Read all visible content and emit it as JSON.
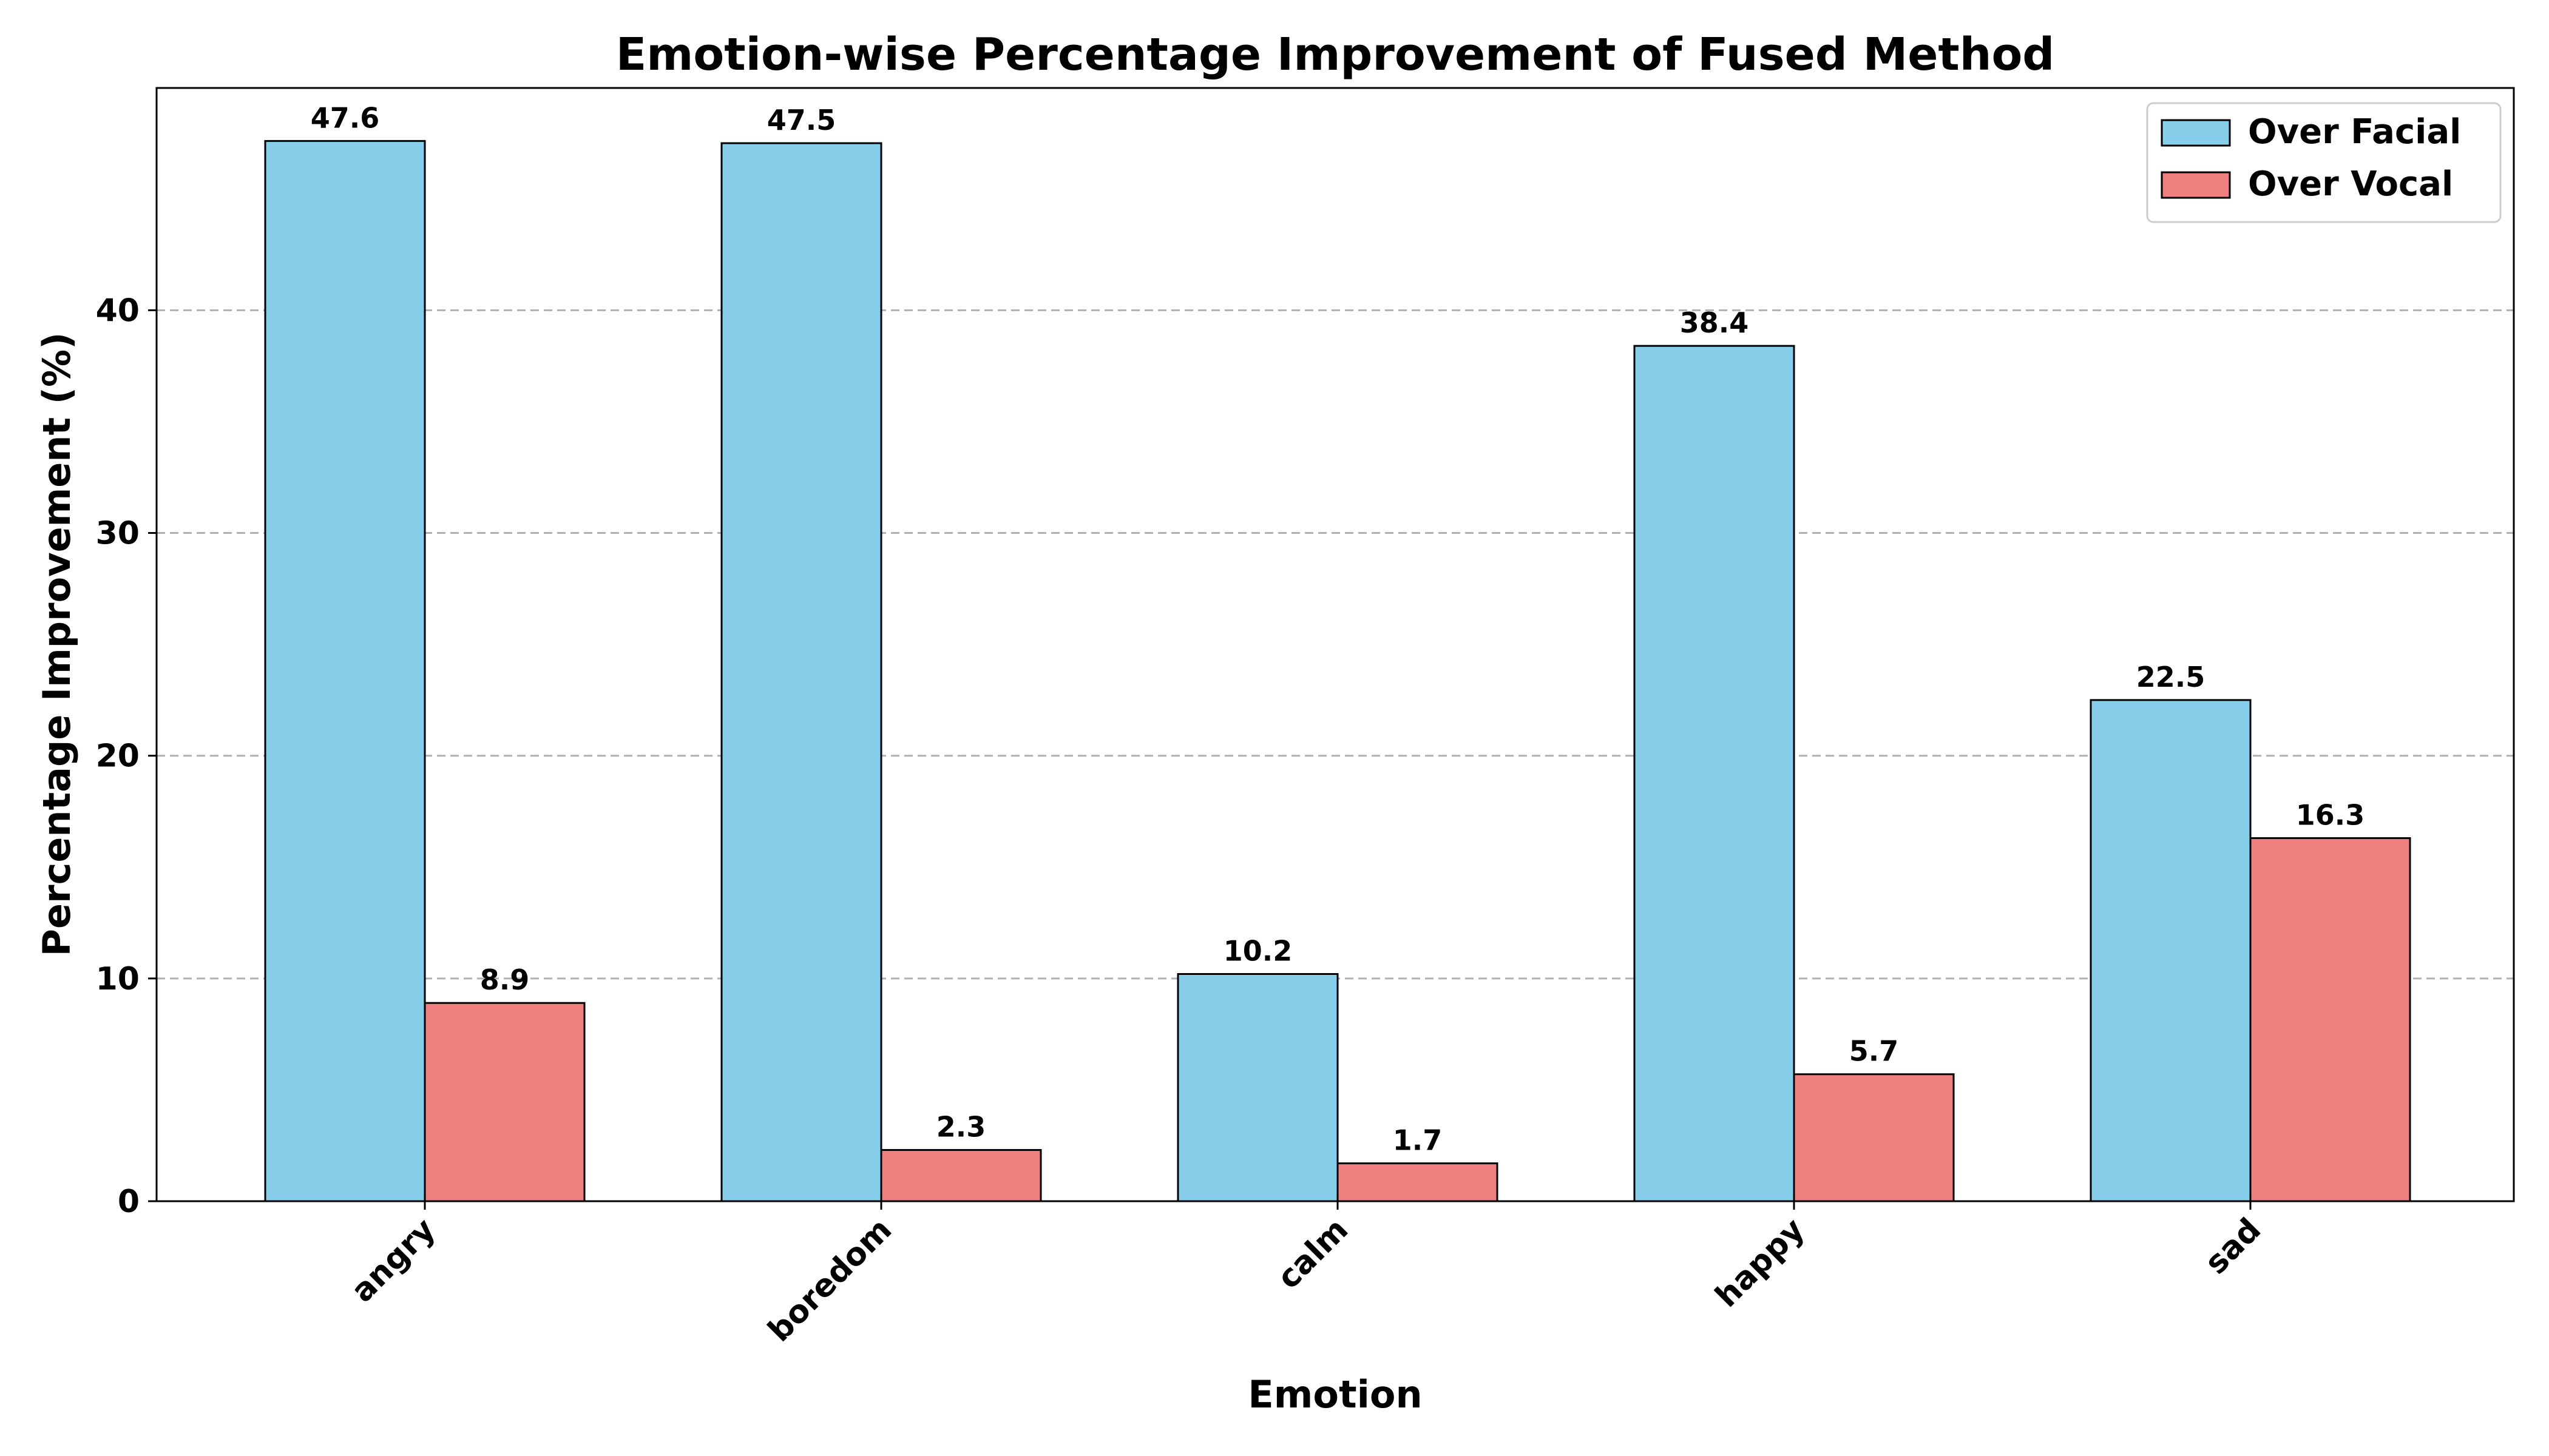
{
  "chart_data": {
    "type": "bar",
    "title": "Emotion-wise Percentage Improvement of Fused Method",
    "xlabel": "Emotion",
    "ylabel": "Percentage Improvement (%)",
    "categories": [
      "angry",
      "boredom",
      "calm",
      "happy",
      "sad"
    ],
    "series": [
      {
        "name": "Over Facial",
        "color": "#87ceeb",
        "values": [
          47.6,
          47.5,
          10.2,
          38.4,
          22.5
        ]
      },
      {
        "name": "Over Vocal",
        "color": "#f08080",
        "values": [
          8.9,
          2.3,
          1.7,
          5.7,
          16.3
        ]
      }
    ],
    "data_labels": [
      [
        "47.6",
        "47.5",
        "10.2",
        "38.4",
        "22.5"
      ],
      [
        "8.9",
        "2.3",
        "1.7",
        "5.7",
        "16.3"
      ]
    ],
    "yticks": [
      0,
      10,
      20,
      30,
      40
    ],
    "ytick_labels": [
      "0",
      "10",
      "20",
      "30",
      "40"
    ],
    "ylim": [
      0,
      50
    ],
    "grid": "y-dashed",
    "legend_position": "top-right"
  }
}
